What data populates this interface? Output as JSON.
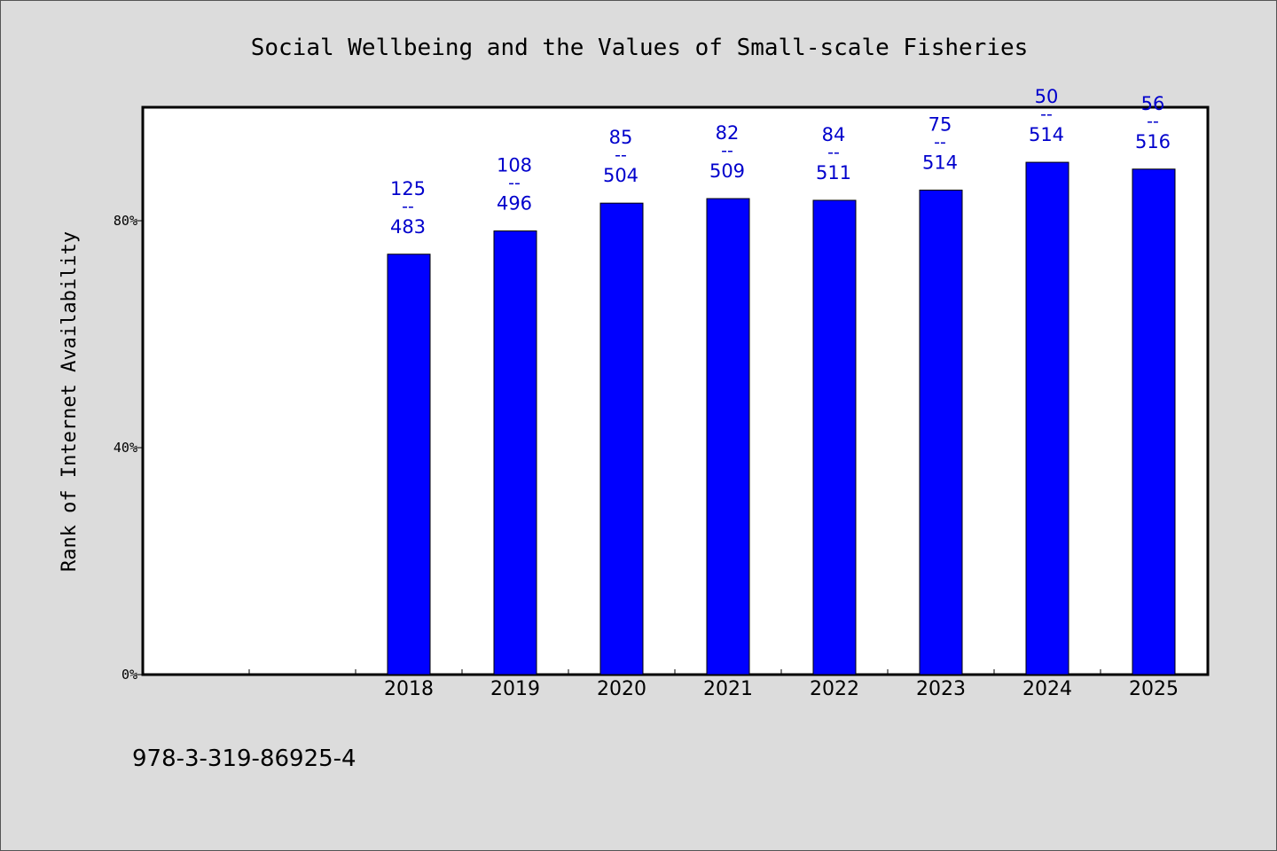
{
  "chart_data": {
    "type": "bar",
    "title": "Social Wellbeing and the Values of Small-scale Fisheries",
    "ylabel": "Rank of Internet Availability",
    "xlabel": "",
    "ylim": [
      0,
      100
    ],
    "yticks": [
      {
        "value": 0,
        "label": "0%"
      },
      {
        "value": 40,
        "label": "40%"
      },
      {
        "value": 80,
        "label": "80%"
      }
    ],
    "slots": 10,
    "first_category_slot": 2,
    "categories": [
      "2018",
      "2019",
      "2020",
      "2021",
      "2022",
      "2023",
      "2024",
      "2025"
    ],
    "values": [
      74.1,
      78.2,
      83.1,
      83.9,
      83.6,
      85.4,
      90.3,
      89.1
    ],
    "labels": [
      {
        "top": "125",
        "sep": "--",
        "bottom": "483"
      },
      {
        "top": "108",
        "sep": "--",
        "bottom": "496"
      },
      {
        "top": "85",
        "sep": "--",
        "bottom": "504"
      },
      {
        "top": "82",
        "sep": "--",
        "bottom": "509"
      },
      {
        "top": "84",
        "sep": "--",
        "bottom": "511"
      },
      {
        "top": "75",
        "sep": "--",
        "bottom": "514"
      },
      {
        "top": "50",
        "sep": "--",
        "bottom": "514"
      },
      {
        "top": "56",
        "sep": "--",
        "bottom": "516"
      }
    ],
    "bar_color": "#0000ff",
    "label_color": "#0000cc",
    "grid": false
  },
  "footer": {
    "isbn": "978-3-319-86925-4"
  }
}
